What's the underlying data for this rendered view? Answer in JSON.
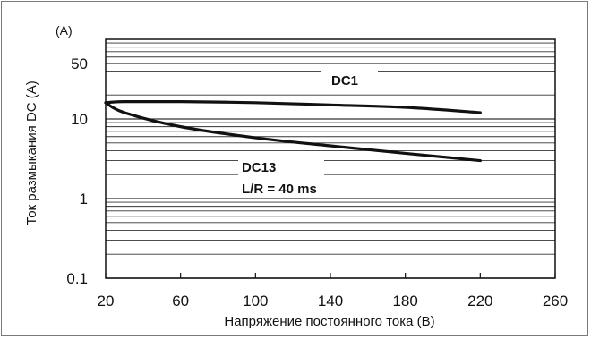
{
  "chart_data": {
    "type": "line",
    "title": "",
    "xlabel": "Напряжение постоянного тока (В)",
    "ylabel": "Ток размыкания DC (A)",
    "y_unit": "(A)",
    "y_scale": "log",
    "xlim": [
      20,
      260
    ],
    "ylim": [
      0.1,
      100
    ],
    "x_ticks": [
      20,
      60,
      100,
      140,
      180,
      220,
      260
    ],
    "x_tick_labels": [
      "20",
      "60",
      "100",
      "140",
      "180",
      "220",
      "260"
    ],
    "y_ticks": [
      0.1,
      1,
      10,
      50
    ],
    "y_tick_labels": [
      "0.1",
      "1",
      "10",
      "50"
    ],
    "grid": true,
    "series": [
      {
        "name": "DC1",
        "x": [
          20,
          30,
          60,
          100,
          140,
          180,
          220
        ],
        "y": [
          16,
          16.5,
          16.5,
          16,
          15,
          14,
          12
        ]
      },
      {
        "name": "DC13",
        "sublabel": "L/R = 40 ms",
        "x": [
          20,
          30,
          60,
          100,
          140,
          180,
          220
        ],
        "y": [
          16,
          12,
          8,
          5.8,
          4.6,
          3.7,
          3
        ]
      }
    ]
  }
}
